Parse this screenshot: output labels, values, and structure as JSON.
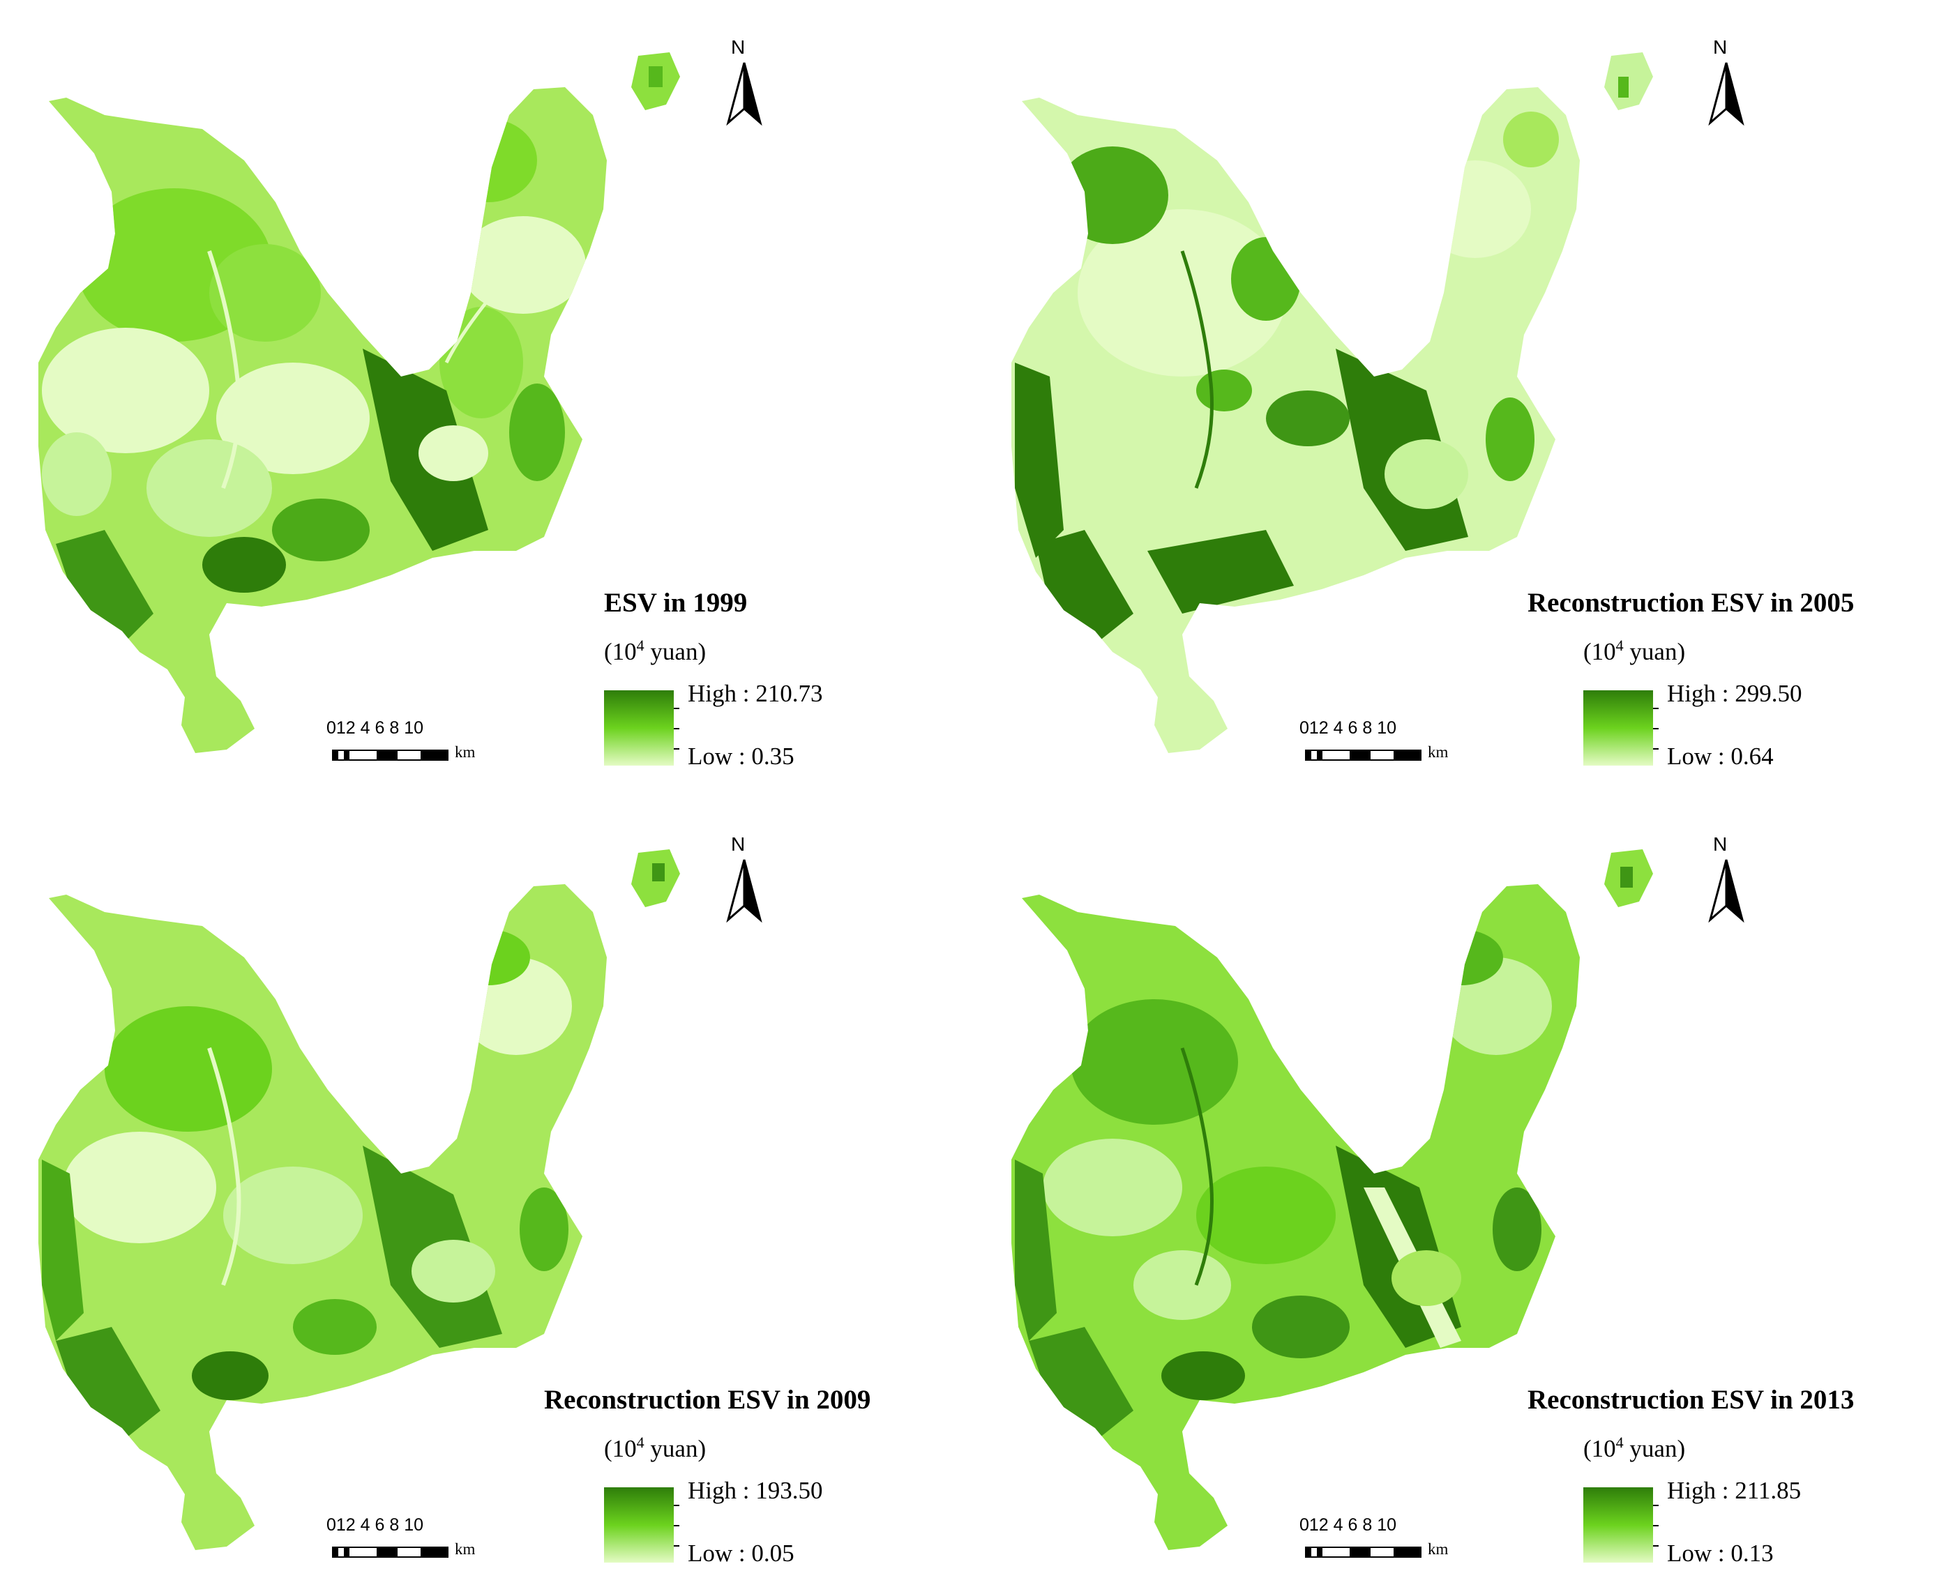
{
  "maps": [
    {
      "title": "ESV in 1999",
      "unit_base": "(10",
      "unit_exp": "4",
      "unit_tail": " yuan)",
      "high_label": "High : 210.73",
      "low_label": "Low : 0.35",
      "scale_labels": "012  4  6  8 10",
      "scale_unit": "km",
      "north_label": "N",
      "colors": {
        "dark": "#2e7d0a",
        "mid": "#6cd21e",
        "light": "#e4fbc4"
      }
    },
    {
      "title": "Reconstruction ESV in 2005",
      "unit_base": "(10",
      "unit_exp": "4",
      "unit_tail": " yuan)",
      "high_label": "High : 299.50",
      "low_label": "Low : 0.64",
      "scale_labels": "012  4  6  8 10",
      "scale_unit": "km",
      "north_label": "N",
      "colors": {
        "dark": "#2e7d0a",
        "mid": "#6cd21e",
        "light": "#e4fbc4"
      }
    },
    {
      "title": "Reconstruction ESV in 2009",
      "unit_base": "(10",
      "unit_exp": "4",
      "unit_tail": " yuan)",
      "high_label": "High : 193.50",
      "low_label": "Low : 0.05",
      "scale_labels": "012  4  6  8 10",
      "scale_unit": "km",
      "north_label": "N",
      "colors": {
        "dark": "#2e7d0a",
        "mid": "#6cd21e",
        "light": "#e4fbc4"
      }
    },
    {
      "title": "Reconstruction ESV in 2013",
      "unit_base": "(10",
      "unit_exp": "4",
      "unit_tail": " yuan)",
      "high_label": "High : 211.85",
      "low_label": "Low : 0.13",
      "scale_labels": "012  4  6  8 10",
      "scale_unit": "km",
      "north_label": "N",
      "colors": {
        "dark": "#2e7d0a",
        "mid": "#6cd21e",
        "light": "#e4fbc4"
      }
    }
  ]
}
